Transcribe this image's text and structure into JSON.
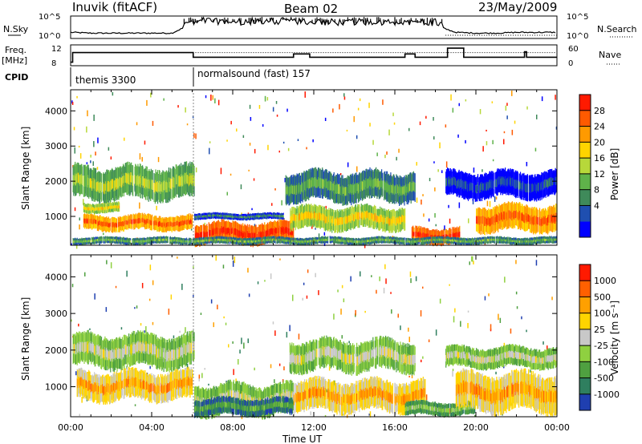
{
  "header": {
    "station": "Inuvik (fitACF)",
    "beam": "Beam 02",
    "date": "23/May/2009"
  },
  "chart_data": [
    {
      "type": "line",
      "panel": "noise",
      "left_label": "N.Sky",
      "right_label": "N.Search",
      "left_ticks": [
        "10^5",
        "10^0"
      ],
      "right_ticks": [
        "10^5",
        "10^0"
      ],
      "series": [
        {
          "name": "N.Sky",
          "style": "solid"
        },
        {
          "name": "N.Search",
          "style": "dotted"
        }
      ],
      "x": [
        0,
        1,
        2,
        3,
        4,
        5,
        6,
        7,
        8,
        9,
        10,
        11,
        12,
        13,
        14,
        15,
        16,
        17,
        18,
        19,
        20,
        21,
        22,
        23,
        24
      ],
      "sky_level": [
        0.3,
        0.25,
        0.25,
        0.25,
        0.25,
        0.25,
        0.85,
        0.85,
        0.8,
        0.8,
        0.85,
        0.8,
        0.8,
        0.75,
        0.8,
        0.8,
        0.8,
        0.8,
        0.75,
        0.3,
        0.25,
        0.25,
        0.3,
        0.3,
        0.3
      ]
    },
    {
      "type": "line",
      "panel": "frequency",
      "left_label_1": "Freq.",
      "left_label_2": "[MHz]",
      "right_label": "Nave",
      "left_ticks": [
        "12",
        "8"
      ],
      "right_ticks": [
        "60",
        "0"
      ],
      "freq_x": [
        0,
        0.1,
        6,
        6.05,
        10.8,
        11.0,
        11.8,
        16.3,
        16.5,
        17.0,
        18.6,
        19.4,
        20.1,
        22.4,
        22.5,
        22.7,
        24
      ],
      "freq_mhz": [
        8,
        11.5,
        11.5,
        9.8,
        9.8,
        11.0,
        9.8,
        9.8,
        11.0,
        9.8,
        13.1,
        9.8,
        9.8,
        11.8,
        9.8,
        9.8,
        9.8
      ],
      "nave_level": 11.5
    },
    {
      "type": "table",
      "panel": "cpid",
      "label": "CPID",
      "segments": [
        {
          "text": "themis 3300",
          "start": 0,
          "end": 6.1
        },
        {
          "text": "normalsound (fast) 157",
          "start": 6.1,
          "end": 24
        }
      ]
    },
    {
      "type": "heatmap",
      "panel": "power",
      "ylabel": "Slant Range [km]",
      "yticks": [
        1000,
        2000,
        3000,
        4000
      ],
      "ylim": [
        180,
        4600
      ],
      "xlim": [
        0,
        24
      ],
      "colorbar": {
        "label": "Power [dB]",
        "ticks": [
          "28",
          "24",
          "20",
          "16",
          "12",
          "8",
          "4"
        ],
        "colors": [
          "#0000ff",
          "#1f4fb0",
          "#3f8a5a",
          "#5fb24a",
          "#b7d83a",
          "#ffd400",
          "#ff9a00",
          "#ff5a00",
          "#ff1a00"
        ]
      },
      "bands": [
        {
          "x0": 0.6,
          "x1": 6.0,
          "y0": 580,
          "y1": 1050,
          "level": 7
        },
        {
          "x0": 0.1,
          "x1": 6.1,
          "y0": 1450,
          "y1": 2450,
          "level": 4
        },
        {
          "x0": 0.6,
          "x1": 2.4,
          "y0": 1100,
          "y1": 1400,
          "level": 5
        },
        {
          "x0": 6.1,
          "x1": 11.0,
          "y0": 200,
          "y1": 850,
          "level": 8
        },
        {
          "x0": 6.1,
          "x1": 10.5,
          "y0": 900,
          "y1": 1100,
          "level": 2
        },
        {
          "x0": 10.6,
          "x1": 17.0,
          "y0": 1400,
          "y1": 2300,
          "level": 3
        },
        {
          "x0": 10.8,
          "x1": 16.5,
          "y0": 600,
          "y1": 1300,
          "level": 5
        },
        {
          "x0": 16.8,
          "x1": 19.2,
          "y0": 200,
          "y1": 700,
          "level": 8
        },
        {
          "x0": 20.0,
          "x1": 24.0,
          "y0": 550,
          "y1": 1350,
          "level": 7
        },
        {
          "x0": 18.5,
          "x1": 24.0,
          "y0": 1500,
          "y1": 2300,
          "level": 1
        },
        {
          "x0": 0.1,
          "x1": 24.0,
          "y0": 200,
          "y1": 420,
          "level": 3
        }
      ]
    },
    {
      "type": "heatmap",
      "panel": "velocity",
      "xlabel": "Time UT",
      "ylabel": "Slant Range [km]",
      "yticks": [
        1000,
        2000,
        3000,
        4000
      ],
      "xticks": [
        "00:00",
        "04:00",
        "08:00",
        "12:00",
        "16:00",
        "20:00",
        "00:00"
      ],
      "ylim": [
        180,
        4600
      ],
      "xlim": [
        0,
        24
      ],
      "colorbar": {
        "label": "Velocity [m s⁻¹]",
        "ticks": [
          "1000",
          "500",
          "100",
          "25",
          "-25",
          "-100",
          "-500",
          "-1000"
        ],
        "colors": [
          "#1f3fb0",
          "#2f7f5f",
          "#4fa040",
          "#8fd040",
          "#c8c8c8",
          "#ffd400",
          "#ffa000",
          "#ff6000",
          "#ff1a00"
        ]
      },
      "bands": [
        {
          "x0": 0.1,
          "x1": 6.1,
          "y0": 1500,
          "y1": 2450,
          "level": 4
        },
        {
          "x0": 0.3,
          "x1": 6.0,
          "y0": 600,
          "y1": 1450,
          "level": 6
        },
        {
          "x0": 6.1,
          "x1": 11.0,
          "y0": 200,
          "y1": 1100,
          "level": 4
        },
        {
          "x0": 6.1,
          "x1": 11.0,
          "y0": 200,
          "y1": 700,
          "level": 2
        },
        {
          "x0": 10.8,
          "x1": 17.0,
          "y0": 1400,
          "y1": 2300,
          "level": 4
        },
        {
          "x0": 11.0,
          "x1": 17.5,
          "y0": 300,
          "y1": 1200,
          "level": 6
        },
        {
          "x0": 16.5,
          "x1": 20.0,
          "y0": 200,
          "y1": 600,
          "level": 3
        },
        {
          "x0": 19.0,
          "x1": 24.0,
          "y0": 300,
          "y1": 1400,
          "level": 6
        },
        {
          "x0": 18.5,
          "x1": 24.0,
          "y0": 1500,
          "y1": 2100,
          "level": 4
        }
      ]
    }
  ]
}
